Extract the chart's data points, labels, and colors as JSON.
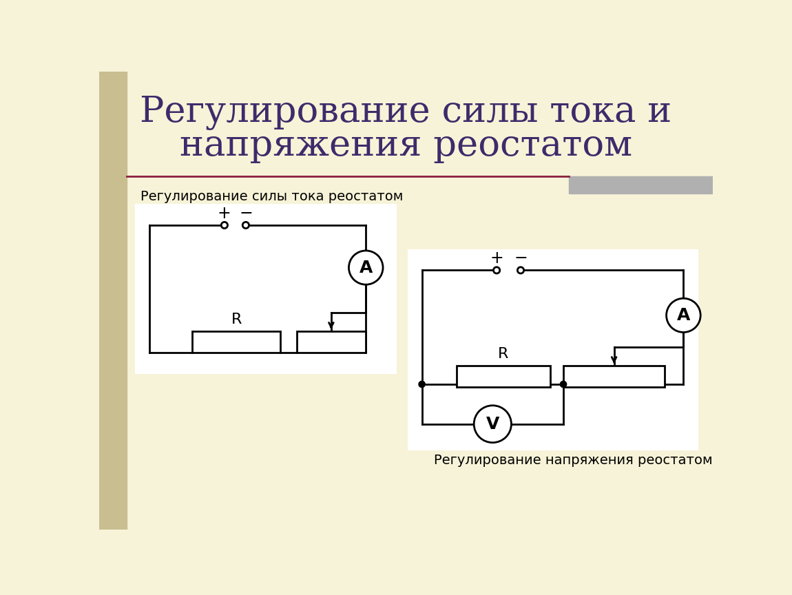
{
  "title_line1": "Регулирование силы тока и",
  "title_line2": "напряжения реостатом",
  "title_color": "#3d2b6b",
  "title_fontsize": 38,
  "bg_color": "#f7f3d8",
  "sidebar_color": "#c8be90",
  "header_line_color": "#8b2040",
  "gray_accent_color": "#b0b0b0",
  "label1": "Регулирование силы тока реостатом",
  "label2": "Регулирование напряжения реостатом",
  "circuit_bg": "#ffffff",
  "lc": "#000000",
  "lw": 2.0,
  "text_color": "#000000",
  "label_fontsize": 14,
  "circuit_text_fontsize": 16
}
